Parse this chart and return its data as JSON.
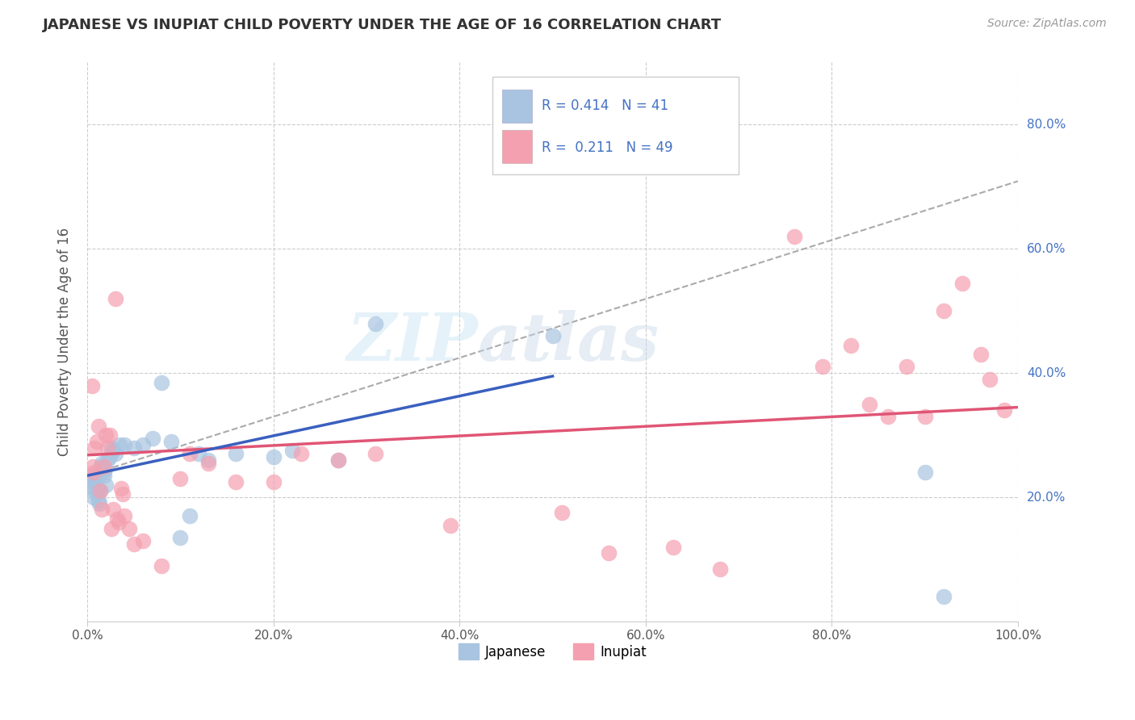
{
  "title": "JAPANESE VS INUPIAT CHILD POVERTY UNDER THE AGE OF 16 CORRELATION CHART",
  "source": "Source: ZipAtlas.com",
  "ylabel": "Child Poverty Under the Age of 16",
  "xlim": [
    0.0,
    1.0
  ],
  "ylim": [
    0.0,
    0.9
  ],
  "xtick_positions": [
    0.0,
    0.2,
    0.4,
    0.6,
    0.8,
    1.0
  ],
  "xticklabels": [
    "0.0%",
    "20.0%",
    "40.0%",
    "60.0%",
    "80.0%",
    "100.0%"
  ],
  "ytick_positions": [
    0.2,
    0.4,
    0.6,
    0.8
  ],
  "yticklabels_right": [
    "20.0%",
    "40.0%",
    "60.0%",
    "80.0%"
  ],
  "r_japanese": 0.414,
  "n_japanese": 41,
  "r_inupiat": 0.211,
  "n_inupiat": 49,
  "japanese_color": "#a8c4e0",
  "inupiat_color": "#f4a0b0",
  "trendline_japanese_color": "#3a5fbf",
  "trendline_inupiat_color": "#e05575",
  "background_color": "#ffffff",
  "watermark_text": "ZIPatlas",
  "japanese_x": [
    0.004,
    0.005,
    0.006,
    0.007,
    0.008,
    0.009,
    0.01,
    0.011,
    0.012,
    0.013,
    0.014,
    0.015,
    0.016,
    0.017,
    0.018,
    0.019,
    0.02,
    0.022,
    0.024,
    0.026,
    0.028,
    0.03,
    0.035,
    0.04,
    0.05,
    0.06,
    0.07,
    0.08,
    0.09,
    0.1,
    0.11,
    0.12,
    0.13,
    0.16,
    0.2,
    0.22,
    0.27,
    0.31,
    0.5,
    0.9,
    0.92
  ],
  "japanese_y": [
    0.22,
    0.235,
    0.215,
    0.2,
    0.225,
    0.23,
    0.205,
    0.215,
    0.195,
    0.19,
    0.21,
    0.25,
    0.255,
    0.24,
    0.235,
    0.245,
    0.22,
    0.26,
    0.265,
    0.28,
    0.275,
    0.27,
    0.285,
    0.285,
    0.28,
    0.285,
    0.295,
    0.385,
    0.29,
    0.135,
    0.17,
    0.27,
    0.26,
    0.27,
    0.265,
    0.275,
    0.26,
    0.48,
    0.46,
    0.24,
    0.04
  ],
  "inupiat_x": [
    0.005,
    0.006,
    0.007,
    0.008,
    0.01,
    0.012,
    0.014,
    0.016,
    0.018,
    0.02,
    0.022,
    0.024,
    0.026,
    0.028,
    0.03,
    0.032,
    0.034,
    0.036,
    0.038,
    0.04,
    0.045,
    0.05,
    0.06,
    0.08,
    0.1,
    0.11,
    0.13,
    0.16,
    0.2,
    0.23,
    0.27,
    0.31,
    0.39,
    0.51,
    0.56,
    0.63,
    0.68,
    0.76,
    0.79,
    0.82,
    0.84,
    0.86,
    0.88,
    0.9,
    0.92,
    0.94,
    0.96,
    0.97,
    0.985
  ],
  "inupiat_y": [
    0.38,
    0.25,
    0.24,
    0.28,
    0.29,
    0.315,
    0.21,
    0.18,
    0.25,
    0.3,
    0.28,
    0.3,
    0.15,
    0.18,
    0.52,
    0.165,
    0.16,
    0.215,
    0.205,
    0.17,
    0.15,
    0.125,
    0.13,
    0.09,
    0.23,
    0.27,
    0.255,
    0.225,
    0.225,
    0.27,
    0.26,
    0.27,
    0.155,
    0.175,
    0.11,
    0.12,
    0.085,
    0.62,
    0.41,
    0.445,
    0.35,
    0.33,
    0.41,
    0.33,
    0.5,
    0.545,
    0.43,
    0.39,
    0.34
  ],
  "trendline_j_x0": 0.0,
  "trendline_j_y0": 0.235,
  "trendline_j_x1": 0.5,
  "trendline_j_y1": 0.395,
  "trendline_i_x0": 0.0,
  "trendline_i_y0": 0.268,
  "trendline_i_x1": 1.0,
  "trendline_i_y1": 0.345,
  "dashed_line_x0": 0.0,
  "dashed_line_y0": 0.235,
  "dashed_line_x1": 1.0,
  "dashed_line_y1": 0.709
}
